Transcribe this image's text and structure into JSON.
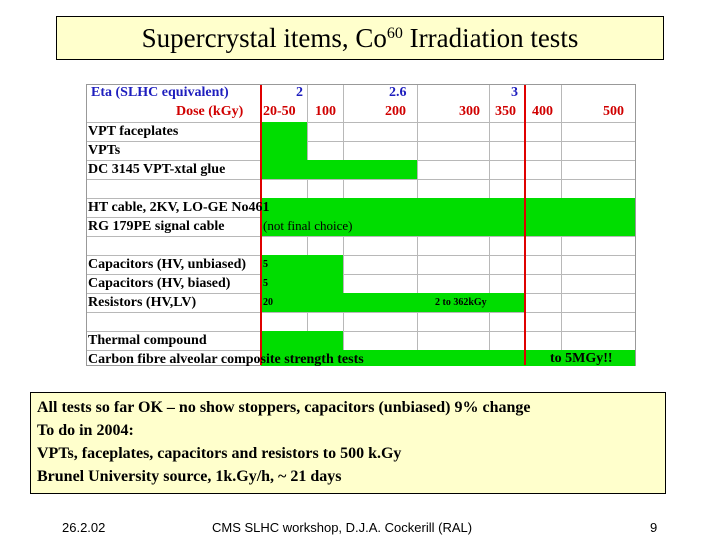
{
  "title": {
    "main": "Supercrystal items, Co",
    "sup": "60",
    "rest": " Irradiation tests"
  },
  "table": {
    "header": {
      "eta_label": "Eta (SLHC equivalent)",
      "dose_label": "Dose (kGy)",
      "eta_values": [
        "2",
        "2.6",
        "3"
      ],
      "dose_values": [
        "20-50",
        "100",
        "200",
        "300",
        "350",
        "400",
        "500"
      ]
    },
    "rows": [
      "VPT faceplates",
      "VPTs",
      "DC 3145 VPT-xtal glue",
      "HT cable, 2KV, LO-GE No461",
      "RG 179PE signal cable",
      "Capacitors (HV, unbiased)",
      "Capacitors (HV, biased)",
      "Resistors (HV,LV)",
      "Thermal compound",
      "Carbon fibre alveolar composite strength tests"
    ],
    "notes": {
      "not_final": "(not final choice)",
      "cap_unbiased": "5",
      "cap_biased": "5",
      "resistors": "20",
      "resistors_range": "2 to 362kGy",
      "to_5mgy": "to 5MGy!!"
    },
    "colors": {
      "bar": "#00dd00",
      "line": "#e00000",
      "eta": "#1e1ebe",
      "dose": "#d00000"
    }
  },
  "summary": {
    "line1": "All tests so far OK – no show stoppers, capacitors (unbiased)  9% change",
    "line2": "To do in 2004:",
    "line3": "VPTs, faceplates, capacitors and resistors to 500 k.Gy",
    "line4": "Brunel University source, 1k.Gy/h, ~ 21 days"
  },
  "footer": {
    "date": "26.2.02",
    "center": "CMS SLHC workshop, D.J.A. Cockerill (RAL)",
    "page": "9"
  }
}
